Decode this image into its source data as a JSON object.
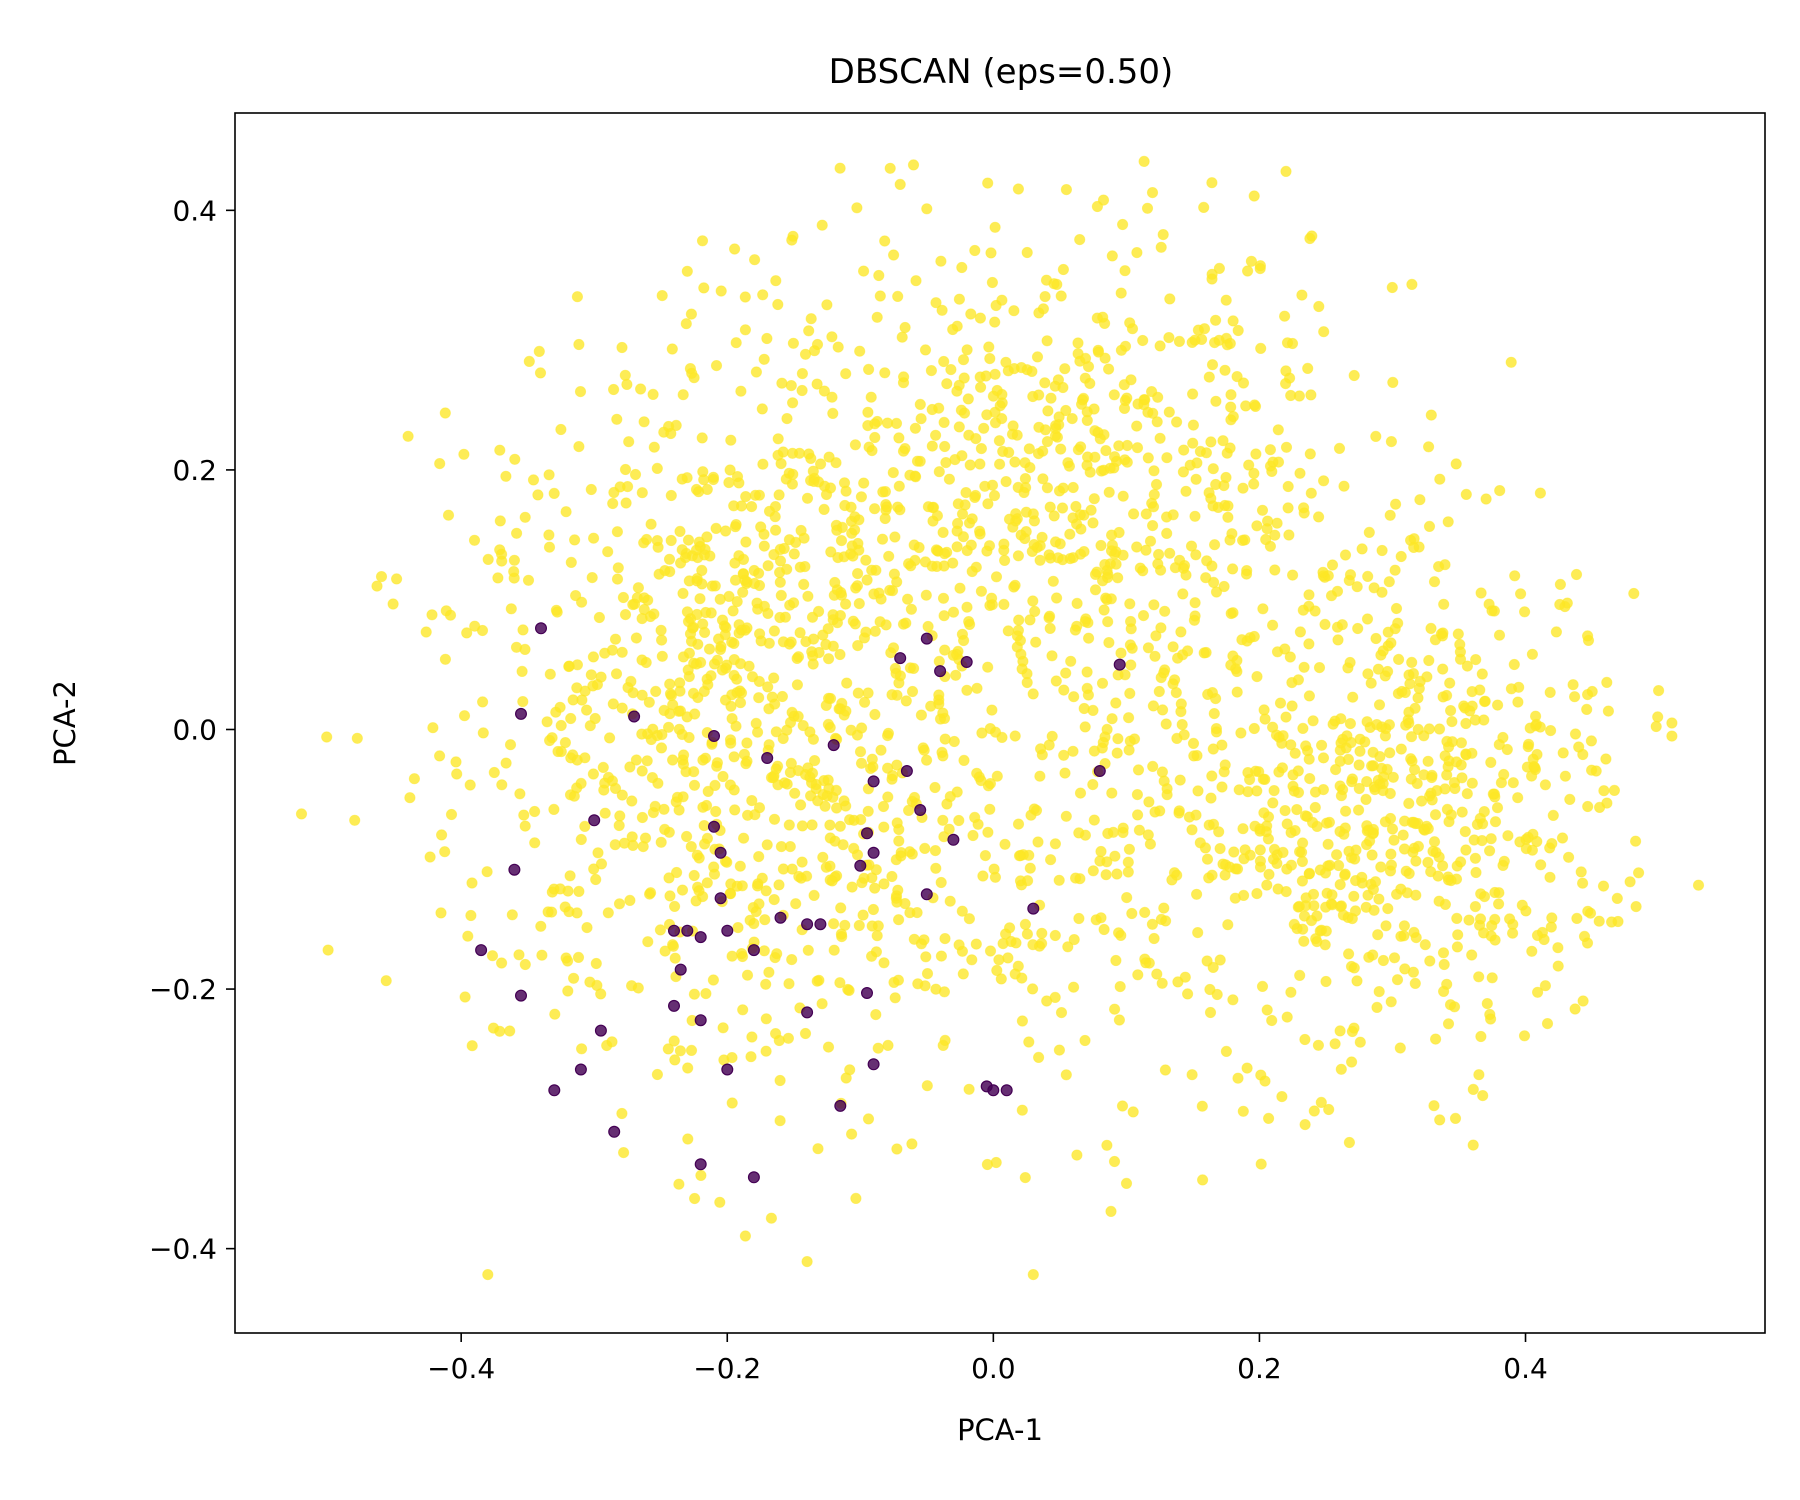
{
  "chart_data": {
    "type": "scatter",
    "title": "DBSCAN (eps=0.50)",
    "xlabel": "PCA-1",
    "ylabel": "PCA-2",
    "xlim": [
      -0.57,
      0.58
    ],
    "ylim": [
      -0.465,
      0.475
    ],
    "xticks": [
      -0.4,
      -0.2,
      0.0,
      0.2,
      0.4
    ],
    "xtick_labels": [
      "−0.4",
      "−0.2",
      "0.0",
      "0.2",
      "0.4"
    ],
    "yticks": [
      -0.4,
      -0.2,
      0.0,
      0.2,
      0.4
    ],
    "ytick_labels": [
      "−0.4",
      "−0.2",
      "0.0",
      "0.2",
      "0.4"
    ],
    "grid": false,
    "legend": "none",
    "colors": {
      "cluster": "#fde725",
      "noise": "#440154"
    },
    "series": [
      {
        "color_key": "cluster",
        "approx_point_count": 2600,
        "regions": [
          {
            "cx": -0.2,
            "cy": 0.02,
            "sx": 0.11,
            "sy": 0.15,
            "weight": 0.33
          },
          {
            "cx": 0.3,
            "cy": -0.06,
            "sx": 0.1,
            "sy": 0.1,
            "weight": 0.28
          },
          {
            "cx": 0.05,
            "cy": 0.2,
            "sx": 0.12,
            "sy": 0.1,
            "weight": 0.27
          },
          {
            "cx": 0.0,
            "cy": -0.1,
            "sx": 0.14,
            "sy": 0.12,
            "weight": 0.12
          }
        ],
        "extent": {
          "x": [
            -0.53,
            0.53
          ],
          "y": [
            -0.43,
            0.44
          ]
        },
        "outliers": [
          [
            -0.52,
            -0.065
          ],
          [
            -0.5,
            -0.17
          ],
          [
            -0.48,
            -0.07
          ],
          [
            0.53,
            -0.12
          ],
          [
            0.5,
            0.03
          ],
          [
            0.51,
            0.005
          ],
          [
            -0.06,
            0.435
          ],
          [
            -0.07,
            0.42
          ],
          [
            0.22,
            0.43
          ],
          [
            -0.38,
            -0.42
          ],
          [
            0.03,
            -0.42
          ],
          [
            -0.14,
            -0.41
          ]
        ]
      },
      {
        "color_key": "noise",
        "points": [
          [
            -0.34,
            0.078
          ],
          [
            -0.355,
            0.012
          ],
          [
            -0.27,
            0.01
          ],
          [
            -0.21,
            -0.005
          ],
          [
            -0.12,
            -0.012
          ],
          [
            -0.07,
            0.055
          ],
          [
            -0.05,
            0.07
          ],
          [
            -0.04,
            0.045
          ],
          [
            -0.02,
            0.052
          ],
          [
            0.095,
            0.05
          ],
          [
            0.08,
            -0.032
          ],
          [
            -0.17,
            -0.022
          ],
          [
            -0.3,
            -0.07
          ],
          [
            -0.21,
            -0.075
          ],
          [
            -0.09,
            -0.04
          ],
          [
            -0.065,
            -0.032
          ],
          [
            -0.055,
            -0.062
          ],
          [
            -0.03,
            -0.085
          ],
          [
            -0.095,
            -0.08
          ],
          [
            -0.1,
            -0.105
          ],
          [
            -0.09,
            -0.095
          ],
          [
            -0.205,
            -0.095
          ],
          [
            -0.36,
            -0.108
          ],
          [
            -0.205,
            -0.13
          ],
          [
            -0.05,
            -0.127
          ],
          [
            -0.16,
            -0.145
          ],
          [
            -0.14,
            -0.15
          ],
          [
            -0.13,
            -0.15
          ],
          [
            -0.24,
            -0.155
          ],
          [
            -0.23,
            -0.155
          ],
          [
            -0.2,
            -0.155
          ],
          [
            -0.22,
            -0.16
          ],
          [
            -0.385,
            -0.17
          ],
          [
            -0.18,
            -0.17
          ],
          [
            -0.235,
            -0.185
          ],
          [
            -0.355,
            -0.205
          ],
          [
            -0.095,
            -0.203
          ],
          [
            -0.24,
            -0.213
          ],
          [
            -0.22,
            -0.224
          ],
          [
            -0.14,
            -0.218
          ],
          [
            -0.295,
            -0.232
          ],
          [
            0.03,
            -0.138
          ],
          [
            -0.31,
            -0.262
          ],
          [
            -0.2,
            -0.262
          ],
          [
            -0.09,
            -0.258
          ],
          [
            -0.33,
            -0.278
          ],
          [
            -0.005,
            -0.275
          ],
          [
            0.0,
            -0.278
          ],
          [
            0.01,
            -0.278
          ],
          [
            -0.115,
            -0.29
          ],
          [
            -0.285,
            -0.31
          ],
          [
            -0.22,
            -0.335
          ],
          [
            -0.18,
            -0.345
          ]
        ]
      }
    ]
  }
}
